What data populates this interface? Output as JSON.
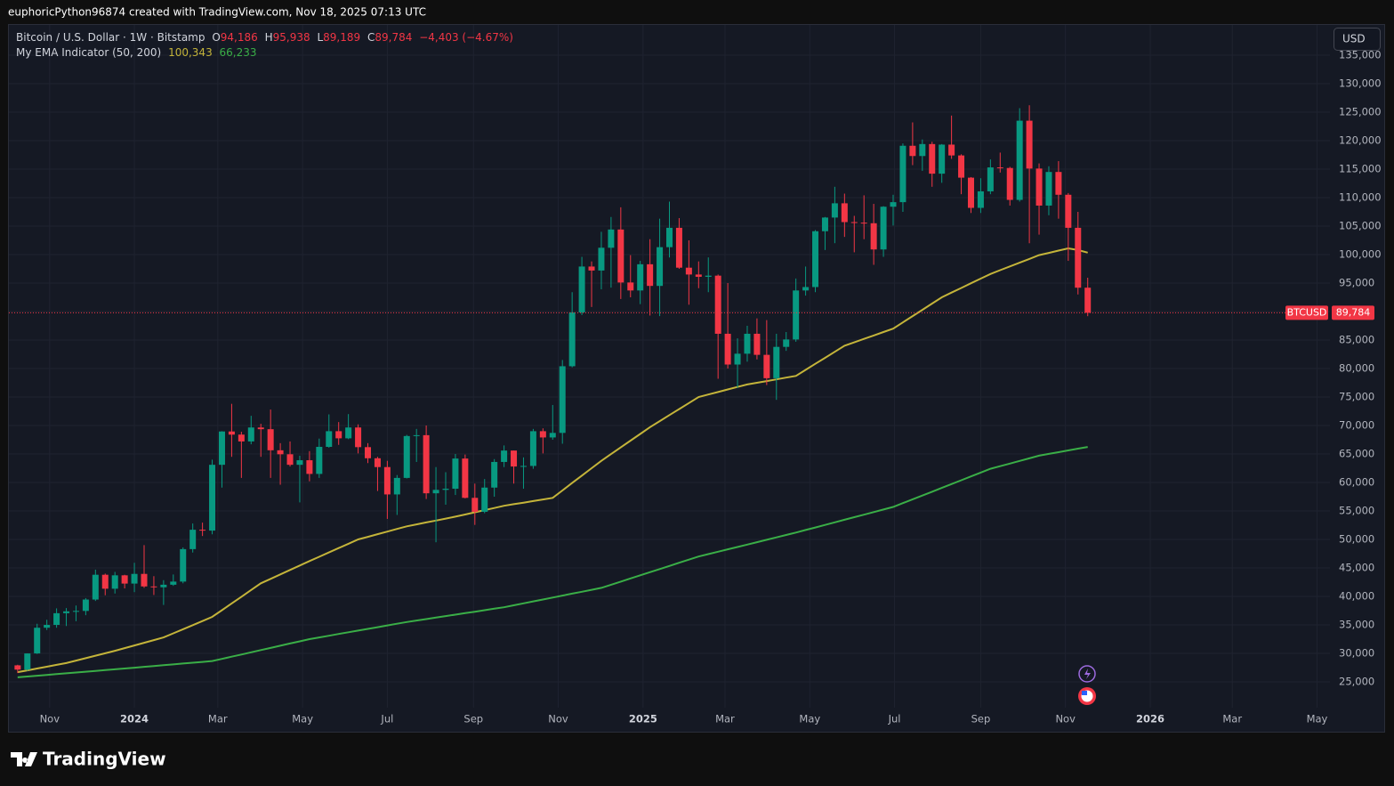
{
  "header": {
    "text": "euphoricPython96874 created with TradingView.com, Nov 18, 2025 07:13 UTC"
  },
  "legend": {
    "symbol": "Bitcoin / U.S. Dollar · 1W · Bitstamp",
    "open_label": "O",
    "open": "94,186",
    "high_label": "H",
    "high": "95,938",
    "low_label": "L",
    "low": "89,189",
    "close_label": "C",
    "close": "89,784",
    "change": "−4,403 (−4.67%)"
  },
  "indicator": {
    "name": "My EMA Indicator (50, 200)",
    "ema_fast": "100,343",
    "ema_slow": "66,233"
  },
  "price_label": {
    "symbol": "BTCUSD",
    "value": "89,784"
  },
  "currency": "USD",
  "brand": "TradingView",
  "chart_data": {
    "type": "candlestick",
    "up_color": "#089981",
    "down_color": "#f23645",
    "grid": true,
    "price_line_color": "#f23645",
    "xlim": [
      -0.9,
      134.9
    ],
    "xticks": [
      {
        "value": 3.29,
        "label": "Nov"
      },
      {
        "value": 12.0,
        "label": "2024"
      },
      {
        "value": 20.57,
        "label": "Mar"
      },
      {
        "value": 29.29,
        "label": "May"
      },
      {
        "value": 38.0,
        "label": "Jul"
      },
      {
        "value": 46.86,
        "label": "Sep"
      },
      {
        "value": 55.57,
        "label": "Nov"
      },
      {
        "value": 64.29,
        "label": "2025"
      },
      {
        "value": 72.71,
        "label": "Mar"
      },
      {
        "value": 81.43,
        "label": "May"
      },
      {
        "value": 90.14,
        "label": "Jul"
      },
      {
        "value": 99.0,
        "label": "Sep"
      },
      {
        "value": 107.71,
        "label": "Nov"
      },
      {
        "value": 116.43,
        "label": "2026"
      },
      {
        "value": 124.86,
        "label": "Mar"
      },
      {
        "value": 133.57,
        "label": "May"
      }
    ],
    "ylim": [
      20470,
      140310
    ],
    "yticks": [
      {
        "value": 25000,
        "label": "25,000"
      },
      {
        "value": 30000,
        "label": "30,000"
      },
      {
        "value": 35000,
        "label": "35,000"
      },
      {
        "value": 40000,
        "label": "40,000"
      },
      {
        "value": 45000,
        "label": "45,000"
      },
      {
        "value": 50000,
        "label": "50,000"
      },
      {
        "value": 55000,
        "label": "55,000"
      },
      {
        "value": 60000,
        "label": "60,000"
      },
      {
        "value": 65000,
        "label": "65,000"
      },
      {
        "value": 70000,
        "label": "70,000"
      },
      {
        "value": 75000,
        "label": "75,000"
      },
      {
        "value": 80000,
        "label": "80,000"
      },
      {
        "value": 85000,
        "label": "85,000"
      },
      {
        "value": 90000,
        "label": "90,000"
      },
      {
        "value": 95000,
        "label": "95,000"
      },
      {
        "value": 100000,
        "label": "100,000"
      },
      {
        "value": 105000,
        "label": "105,000"
      },
      {
        "value": 110000,
        "label": "110,000"
      },
      {
        "value": 115000,
        "label": "115,000"
      },
      {
        "value": 120000,
        "label": "120,000"
      },
      {
        "value": 125000,
        "label": "125,000"
      },
      {
        "value": 130000,
        "label": "130,000"
      },
      {
        "value": 135000,
        "label": "135,000"
      }
    ],
    "open": [
      27900,
      27150,
      29990,
      34500,
      35000,
      37050,
      37380,
      37450,
      39450,
      43800,
      41350,
      43700,
      42250,
      43950,
      41750,
      41600,
      42050,
      42600,
      48300,
      51700,
      51550,
      63100,
      68950,
      68400,
      67200,
      69650,
      69350,
      65650,
      64950,
      63100,
      63900,
      61500,
      66250,
      69000,
      67750,
      69650,
      66200,
      64250,
      62700,
      57900,
      60800,
      68150,
      68300,
      58100,
      58700,
      58900,
      64200,
      57300,
      54850,
      59100,
      63600,
      65600,
      62800,
      62900,
      69000,
      67900,
      68700,
      80400,
      89850,
      97900,
      97200,
      101200,
      104400,
      95100,
      93700,
      98300,
      94500,
      101300,
      104700,
      97700,
      96500,
      96100,
      96300,
      86100,
      80700,
      82600,
      86100,
      82400,
      78300,
      83800,
      85100,
      93700,
      94300,
      104100,
      106500,
      109000,
      105700,
      105600,
      105500,
      100900,
      108400,
      109200,
      119100,
      117300,
      119400,
      114200,
      119300,
      117400,
      113500,
      108200,
      111100,
      115300,
      115200,
      109600,
      123500,
      115100,
      108600,
      114500,
      110500,
      104700,
      94186
    ],
    "high": [
      28000,
      30000,
      35200,
      35900,
      37900,
      37950,
      38400,
      39700,
      44700,
      44000,
      44300,
      43800,
      45900,
      49000,
      43550,
      42850,
      43850,
      48600,
      52800,
      52950,
      64000,
      69000,
      73800,
      68900,
      71700,
      70300,
      72800,
      66900,
      67200,
      64700,
      65500,
      67700,
      71950,
      70600,
      72000,
      70200,
      66900,
      64500,
      63800,
      61300,
      68350,
      69400,
      70000,
      62700,
      61800,
      65000,
      64900,
      59800,
      60600,
      64100,
      66500,
      65600,
      64400,
      69400,
      69500,
      73600,
      81500,
      93400,
      99600,
      98800,
      104000,
      106600,
      108300,
      99900,
      98900,
      102700,
      106300,
      109300,
      106400,
      102500,
      98800,
      99500,
      96500,
      95000,
      85300,
      87500,
      88800,
      88500,
      86100,
      86400,
      95800,
      97900,
      104300,
      106600,
      111900,
      110700,
      106800,
      110400,
      108900,
      108500,
      110500,
      119500,
      123200,
      120200,
      119800,
      119400,
      124400,
      117600,
      113600,
      113400,
      116700,
      117900,
      115400,
      125700,
      126200,
      116000,
      115500,
      116400,
      110800,
      107500,
      95938
    ],
    "low": [
      26550,
      26950,
      29900,
      34100,
      34500,
      34800,
      35650,
      36700,
      39200,
      40200,
      40500,
      41400,
      40750,
      41500,
      40250,
      38500,
      41850,
      42300,
      47700,
      50600,
      50900,
      59100,
      64500,
      60800,
      66700,
      64500,
      60800,
      59600,
      62800,
      56500,
      60200,
      60800,
      66100,
      66600,
      67600,
      65100,
      63400,
      58500,
      53600,
      54300,
      60700,
      63600,
      57100,
      49500,
      56100,
      57800,
      57200,
      52550,
      54600,
      57500,
      62700,
      59800,
      58900,
      62400,
      65100,
      67500,
      66800,
      80200,
      89400,
      90800,
      93900,
      94200,
      92200,
      92500,
      91300,
      89300,
      89200,
      99500,
      97500,
      91200,
      94100,
      93400,
      78200,
      80000,
      76600,
      81200,
      81600,
      77100,
      74500,
      83100,
      84700,
      92800,
      93400,
      100800,
      102000,
      103100,
      100400,
      102700,
      98200,
      99600,
      105100,
      107500,
      115700,
      114700,
      111900,
      112600,
      116800,
      110600,
      107300,
      107300,
      110600,
      114400,
      108600,
      109300,
      102000,
      103500,
      106900,
      106300,
      98900,
      93000,
      89189
    ],
    "close": [
      27150,
      29990,
      34500,
      35000,
      37050,
      37380,
      37450,
      39450,
      43800,
      41350,
      43700,
      42250,
      43950,
      41750,
      41600,
      42050,
      42600,
      48300,
      51700,
      51550,
      63100,
      68950,
      68400,
      67200,
      69650,
      69350,
      65650,
      64950,
      63100,
      63900,
      61500,
      66250,
      69000,
      67750,
      69650,
      66200,
      64250,
      62700,
      57900,
      60800,
      68150,
      68300,
      58100,
      58700,
      58900,
      64200,
      57300,
      54850,
      59100,
      63600,
      65600,
      62800,
      62900,
      69000,
      67900,
      68700,
      80400,
      89850,
      97900,
      97200,
      101200,
      104400,
      95100,
      93700,
      98300,
      94500,
      101300,
      104700,
      97700,
      96500,
      96100,
      96300,
      86100,
      80700,
      82600,
      86100,
      82400,
      78300,
      83800,
      85100,
      93700,
      94300,
      104100,
      106500,
      109000,
      105700,
      105600,
      105500,
      100900,
      108400,
      109200,
      119100,
      117300,
      119400,
      114200,
      119300,
      117400,
      113500,
      108200,
      111100,
      115300,
      115200,
      109600,
      123500,
      115100,
      108600,
      114500,
      110500,
      104700,
      94186,
      89784
    ],
    "series": [
      {
        "color": "#c4b43a",
        "values": [
          26700,
          27020,
          27340,
          27660,
          27980,
          28300,
          28730,
          29160,
          29590,
          30020,
          30450,
          30920,
          31390,
          31860,
          32330,
          32800,
          33520,
          34240,
          34960,
          35680,
          36400,
          37580,
          38760,
          39940,
          41120,
          42300,
          43080,
          43860,
          44640,
          45420,
          46200,
          46960,
          47720,
          48480,
          49240,
          50000,
          50460,
          50920,
          51380,
          51840,
          52300,
          52640,
          52980,
          53320,
          53660,
          54000,
          54380,
          54760,
          55140,
          55520,
          55900,
          56180,
          56460,
          56740,
          57020,
          57300,
          58600,
          59900,
          61200,
          62500,
          63800,
          64980,
          66160,
          67340,
          68520,
          69700,
          70760,
          71820,
          72880,
          73940,
          75000,
          75440,
          75880,
          76320,
          76760,
          77200,
          77500,
          77800,
          78100,
          78400,
          78700,
          79760,
          80820,
          81880,
          82940,
          84000,
          84600,
          85200,
          85800,
          86400,
          87000,
          88100,
          89200,
          90300,
          91400,
          92500,
          93320,
          94140,
          94960,
          95780,
          96600,
          97260,
          97920,
          98580,
          99240,
          99900,
          100300,
          100700,
          101100,
          100800,
          100343
        ]
      },
      {
        "color": "#3aae47",
        "values": [
          25800,
          25940,
          26080,
          26220,
          26360,
          26500,
          26640,
          26780,
          26920,
          27060,
          27200,
          27345,
          27490,
          27635,
          27780,
          27925,
          28070,
          28215,
          28360,
          28505,
          28650,
          29035,
          29420,
          29805,
          30190,
          30575,
          30960,
          31345,
          31730,
          32115,
          32500,
          32800,
          33100,
          33400,
          33700,
          34000,
          34300,
          34600,
          34900,
          35200,
          35500,
          35760,
          36020,
          36280,
          36540,
          36800,
          37060,
          37320,
          37580,
          37840,
          38100,
          38440,
          38780,
          39120,
          39460,
          39800,
          40140,
          40480,
          40820,
          41160,
          41500,
          42050,
          42600,
          43150,
          43700,
          44250,
          44800,
          45350,
          45900,
          46450,
          47000,
          47420,
          47840,
          48260,
          48680,
          49100,
          49520,
          49940,
          50360,
          50780,
          51200,
          51650,
          52100,
          52550,
          53000,
          53450,
          53900,
          54350,
          54800,
          55250,
          55700,
          56370,
          57040,
          57710,
          58380,
          59050,
          59720,
          60390,
          61060,
          61730,
          62400,
          62860,
          63320,
          63780,
          64240,
          64700,
          65010,
          65310,
          65620,
          65930,
          66233
        ]
      }
    ]
  }
}
